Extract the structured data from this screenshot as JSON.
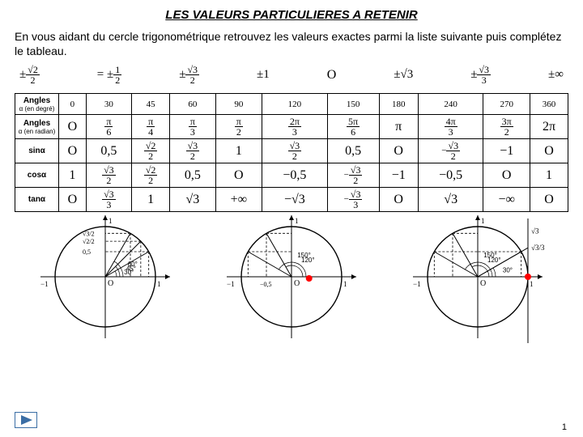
{
  "title": "LES VALEURS PARTICULIERES A RETENIR",
  "intro": "En vous aidant du cercle trigonométrique retrouvez les valeurs exactes parmi la liste suivante puis complétez le tableau.",
  "candidate_values": [
    {
      "pre": "±",
      "num": "√2",
      "den": "2"
    },
    {
      "plain": "=",
      "pre": "±",
      "num": "1",
      "den": "2"
    },
    {
      "pre": "±",
      "num": "√3",
      "den": "2"
    },
    {
      "plain": "±1"
    },
    {
      "plain": "O",
      "big": true
    },
    {
      "plain": "±√3"
    },
    {
      "pre": "±",
      "num": "√3",
      "den": "3"
    },
    {
      "plain": "±∞"
    }
  ],
  "table": {
    "row_headers": [
      {
        "main": "Angles",
        "sub": "α (en degré)"
      },
      {
        "main": "Angles",
        "sub": "α (en radian)"
      },
      {
        "main": "sinα",
        "sub": ""
      },
      {
        "main": "cosα",
        "sub": ""
      },
      {
        "main": "tanα",
        "sub": ""
      }
    ],
    "degrees": [
      "0",
      "30",
      "45",
      "60",
      "90",
      "120",
      "150",
      "180",
      "240",
      "270",
      "360"
    ],
    "radians": [
      "O",
      "π/6",
      "π/4",
      "π/3",
      "π/2",
      "2π/3",
      "5π/6",
      "π",
      "4π/3",
      "3π/2",
      "2π"
    ],
    "sin": [
      "O",
      "0,5",
      "√2/2",
      "√3/2",
      "1",
      "√3/2",
      "0,5",
      "O",
      "−√3/2",
      "−1",
      "O"
    ],
    "cos": [
      "1",
      "√3/2",
      "√2/2",
      "0,5",
      "O",
      "−0,5",
      "−√3/2",
      "−1",
      "−0,5",
      "O",
      "1"
    ],
    "tan": [
      "O",
      "√3/3",
      "1",
      "√3",
      "+∞",
      "−√3",
      "−√3/3",
      "O",
      "√3",
      "−∞",
      "O"
    ]
  },
  "circles": [
    {
      "title": "circle-1",
      "angles_deg": [
        30,
        45,
        60
      ],
      "point_deg": null,
      "red_point": false,
      "axis": [
        -1,
        1
      ],
      "labels": [
        "30°",
        "45°",
        "60°"
      ],
      "ylabels": [
        "0,5",
        "√2/2",
        "√3/2"
      ]
    },
    {
      "title": "circle-2",
      "angles_deg": [
        120,
        150
      ],
      "point_deg": 120,
      "red_point": true,
      "labels": [
        "120°",
        "150°"
      ],
      "xlabels": [
        "−0,5"
      ]
    },
    {
      "title": "circle-3",
      "angles_deg": [
        120,
        150,
        30
      ],
      "tangent_line": true,
      "point_deg": 120,
      "red_point": true,
      "labels": [
        "120°",
        "150°",
        "30°"
      ],
      "tan_labels": [
        "√3",
        "√3/3"
      ]
    }
  ],
  "colors": {
    "red": "#ff0000",
    "black": "#000000",
    "bg": "#ffffff",
    "dash": "#000000"
  },
  "page_number": "1",
  "circle_style": {
    "radius": 62,
    "stroke_width": 1.4,
    "dash": "3,2",
    "red_dot_r": 4
  }
}
